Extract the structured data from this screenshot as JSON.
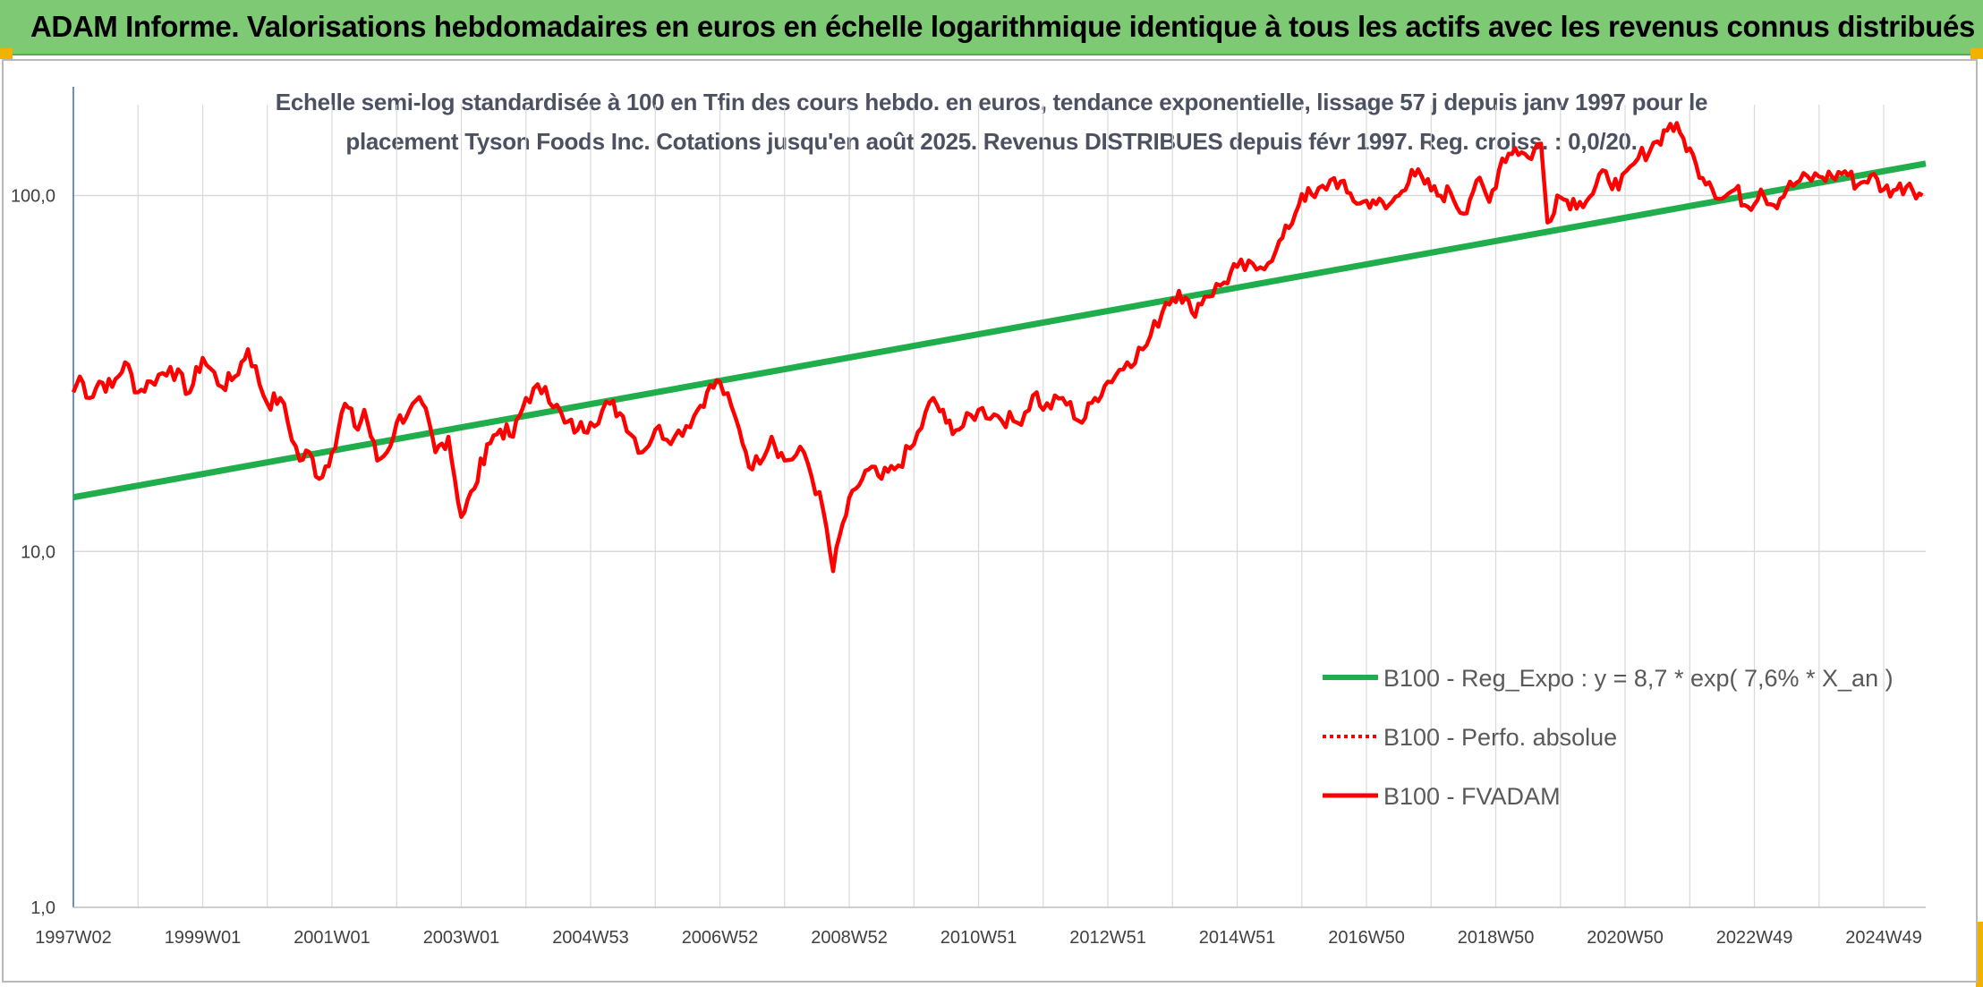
{
  "header": {
    "title": "ADAM Informe. Valorisations hebdomadaires en euros en échelle logarithmique identique à tous les actifs avec les revenus connus distribués"
  },
  "colors": {
    "banner": "#7dc974",
    "trend": "#1fae4b",
    "series": "#ff0000",
    "grid": "#d9d9d9",
    "accent": "#f2b300"
  },
  "chart_data": {
    "type": "line",
    "title_line1": "Echelle semi-log standardisée à 100 en Tfin des cours hebdo. en euros, tendance exponentielle, lissage 57 j depuis janv 1997 pour le",
    "title_line2": "placement Tyson Foods Inc. Cotations jusqu'en août 2025. Revenus DISTRIBUES depuis févr 1997. Reg. croiss. : 0,0/20.",
    "yscale": "log",
    "ylim": [
      1,
      180
    ],
    "y_ticks": [
      {
        "value": 1,
        "label": "1,0"
      },
      {
        "value": 10,
        "label": "10,0"
      },
      {
        "value": 100,
        "label": "100,0"
      }
    ],
    "xlim": [
      1997.0,
      2025.65
    ],
    "x_ticks": [
      {
        "value": 1997.0,
        "label": "1997W02"
      },
      {
        "value": 1999.0,
        "label": "1999W01"
      },
      {
        "value": 2001.0,
        "label": "2001W01"
      },
      {
        "value": 2003.0,
        "label": "2003W01"
      },
      {
        "value": 2005.0,
        "label": "2004W53"
      },
      {
        "value": 2007.0,
        "label": "2006W52"
      },
      {
        "value": 2009.0,
        "label": "2008W52"
      },
      {
        "value": 2011.0,
        "label": "2010W51"
      },
      {
        "value": 2013.0,
        "label": "2012W51"
      },
      {
        "value": 2015.0,
        "label": "2014W51"
      },
      {
        "value": 2017.0,
        "label": "2016W50"
      },
      {
        "value": 2019.0,
        "label": "2018W50"
      },
      {
        "value": 2021.0,
        "label": "2020W50"
      },
      {
        "value": 2023.0,
        "label": "2022W49"
      },
      {
        "value": 2025.0,
        "label": "2024W49"
      }
    ],
    "grid": true,
    "legend_position": "bottom-right",
    "series": [
      {
        "name": "B100 - Reg_Expo : y = 8,7 * exp( 7,6% *  X_an )",
        "style": "solid-green",
        "x": [
          1997.0,
          2025.65
        ],
        "y": [
          14.2,
          123
        ]
      },
      {
        "name": "B100 - Perfo. absolue",
        "style": "dotted-red",
        "x": [],
        "y": []
      },
      {
        "name": "B100 - FVADAM",
        "style": "solid-red",
        "x": [
          1997.0,
          1997.1,
          1997.25,
          1997.4,
          1997.6,
          1997.8,
          1998.0,
          1998.2,
          1998.5,
          1998.8,
          1999.0,
          1999.3,
          1999.5,
          1999.7,
          2000.0,
          2000.2,
          2000.5,
          2000.65,
          2000.8,
          2001.0,
          2001.2,
          2001.4,
          2001.5,
          2001.7,
          2001.85,
          2002.0,
          2002.2,
          2002.4,
          2002.6,
          2002.8,
          2003.0,
          2003.2,
          2003.4,
          2003.6,
          2003.8,
          2004.0,
          2004.3,
          2004.6,
          2004.8,
          2005.0,
          2005.3,
          2005.5,
          2005.8,
          2006.0,
          2006.3,
          2006.6,
          2006.8,
          2007.0,
          2007.3,
          2007.5,
          2007.8,
          2008.0,
          2008.3,
          2008.6,
          2008.75,
          2008.9,
          2009.1,
          2009.3,
          2009.5,
          2009.7,
          2010.0,
          2010.3,
          2010.5,
          2010.7,
          2011.0,
          2011.3,
          2011.6,
          2011.9,
          2012.0,
          2012.3,
          2012.6,
          2012.8,
          2013.0,
          2013.3,
          2013.6,
          2013.9,
          2014.1,
          2014.3,
          2014.5,
          2014.8,
          2015.0,
          2015.3,
          2015.6,
          2015.8,
          2016.0,
          2016.2,
          2016.5,
          2016.7,
          2016.9,
          2017.1,
          2017.3,
          2017.5,
          2017.7,
          2017.9,
          2018.1,
          2018.3,
          2018.5,
          2018.7,
          2018.9,
          2019.1,
          2019.3,
          2019.5,
          2019.7,
          2019.8,
          2019.95,
          2020.1,
          2020.3,
          2020.5,
          2020.7,
          2020.9,
          2021.2,
          2021.5,
          2021.7,
          2021.9,
          2022.1,
          2022.3,
          2022.5,
          2022.7,
          2022.9,
          2023.1,
          2023.3,
          2023.5,
          2023.7,
          2024.0,
          2024.2,
          2024.4,
          2024.6,
          2024.8,
          2025.0,
          2025.2,
          2025.4,
          2025.6
        ],
        "y": [
          28,
          31,
          27,
          30,
          29,
          34,
          28,
          30,
          33,
          28,
          35,
          29,
          31,
          37,
          26,
          27,
          18,
          19,
          16,
          19,
          26,
          22,
          25,
          18,
          19,
          23,
          25,
          26,
          19,
          21,
          12.5,
          15,
          20,
          22,
          21,
          27,
          29,
          23,
          22,
          23,
          26,
          24,
          19,
          22,
          21,
          24,
          28,
          30,
          22,
          17,
          21,
          18,
          19,
          13,
          8.8,
          12,
          15,
          17,
          16,
          17,
          20,
          27,
          23,
          22,
          25,
          24,
          23,
          28,
          25,
          27,
          23,
          27,
          30,
          34,
          38,
          50,
          54,
          47,
          52,
          57,
          63,
          62,
          70,
          81,
          101,
          99,
          112,
          102,
          95,
          97,
          92,
          100,
          118,
          108,
          100,
          102,
          89,
          110,
          96,
          127,
          136,
          128,
          140,
          84,
          100,
          97,
          96,
          101,
          117,
          104,
          127,
          142,
          159,
          145,
          122,
          109,
          98,
          104,
          93,
          104,
          94,
          104,
          110,
          113,
          113,
          117,
          107,
          114,
          104,
          104,
          108,
          100
        ]
      }
    ]
  }
}
